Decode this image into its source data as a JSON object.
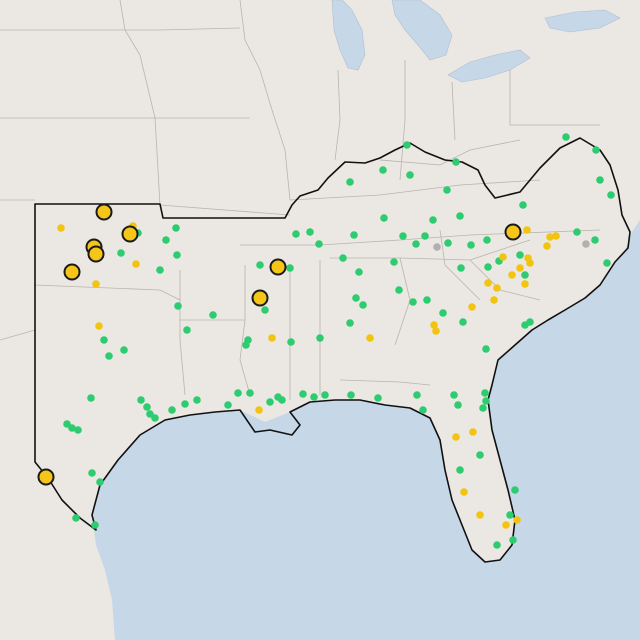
{
  "map": {
    "colors": {
      "land": "#ebe7e2",
      "water": "#c6d7e8",
      "state_border": "#b9b4ae",
      "region_outline": "#111111"
    },
    "legend": "none",
    "categories": [
      {
        "category": "green",
        "color": "#2ecc71"
      },
      {
        "category": "yellow",
        "color": "#f1c40f"
      },
      {
        "category": "gray",
        "color": "#b0b0b0"
      },
      {
        "category": "large-yellow",
        "color": "#f5c518"
      }
    ]
  }
}
